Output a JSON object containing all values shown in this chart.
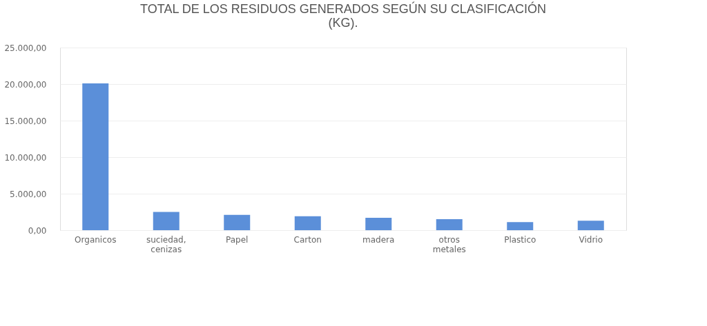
{
  "chart_data": {
    "type": "bar",
    "title": [
      "TOTAL DE LOS RESIDUOS GENERADOS SEGÚN SU CLASIFICACIÓN",
      "(KG)."
    ],
    "categories": [
      "Organicos",
      "suciedad, cenizas",
      "Papel",
      "Carton",
      "madera",
      "otros metales",
      "Plastico",
      "Vidrio"
    ],
    "values": [
      20100,
      2500,
      2100,
      1900,
      1700,
      1500,
      1100,
      1300
    ],
    "color": "#5b8fd9",
    "ylim": [
      0,
      25000
    ],
    "yticks": [
      {
        "value": 0,
        "label": "0,00"
      },
      {
        "value": 5000,
        "label": "5.000,00"
      },
      {
        "value": 10000,
        "label": "10.000,00"
      },
      {
        "value": 15000,
        "label": "15.000,00"
      },
      {
        "value": 20000,
        "label": "20.000,00"
      },
      {
        "value": 25000,
        "label": "25.000,00"
      }
    ],
    "grid": "y"
  }
}
